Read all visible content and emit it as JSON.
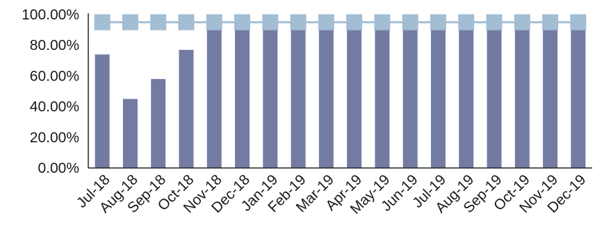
{
  "chart_data": {
    "type": "bar",
    "title": "",
    "xlabel": "",
    "ylabel": "",
    "ylim": [
      0,
      100
    ],
    "yticks": [
      "0.00%",
      "20.00%",
      "40.00%",
      "60.00%",
      "80.00%",
      "100.00%"
    ],
    "ytick_values": [
      0,
      20,
      40,
      60,
      80,
      100
    ],
    "grid": false,
    "legend": "none",
    "categories": [
      "Jul-18",
      "Aug-18",
      "Sep-18",
      "Oct-18",
      "Nov-18",
      "Dec-18",
      "Jan-19",
      "Feb-19",
      "Mar-19",
      "Apr-19",
      "May-19",
      "Jun-19",
      "Jul-19",
      "Aug-19",
      "Sep-19",
      "Oct-19",
      "Nov-19",
      "Dec-19"
    ],
    "series": [
      {
        "kind": "bar",
        "color": "#747ba3",
        "values": [
          74,
          45,
          58,
          77,
          90,
          90,
          90,
          90,
          90,
          90,
          90,
          90,
          90,
          90,
          90,
          90,
          90,
          90
        ]
      },
      {
        "kind": "line-with-square-markers",
        "color": "#a3bdd3",
        "values": [
          95,
          95,
          95,
          95,
          95,
          95,
          95,
          95,
          95,
          95,
          95,
          95,
          95,
          95,
          95,
          95,
          95,
          95
        ]
      }
    ]
  }
}
